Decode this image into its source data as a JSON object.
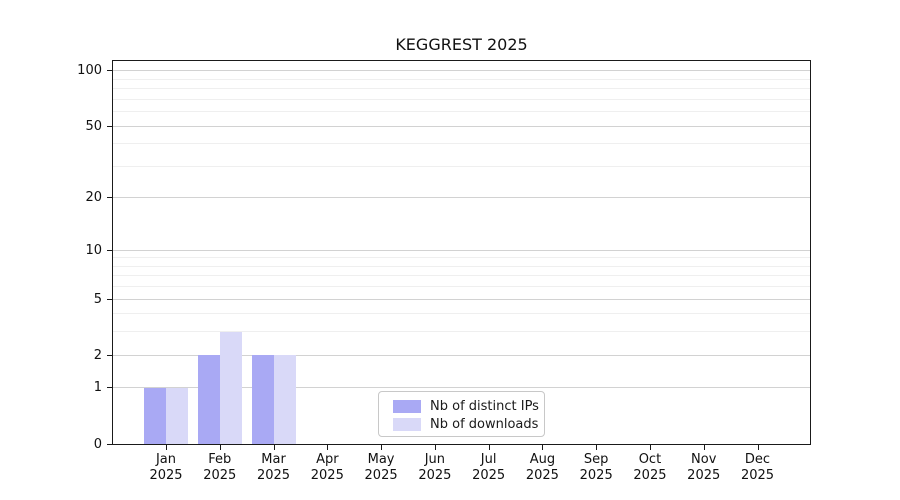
{
  "chart_data": {
    "type": "bar",
    "title": "KEGGREST 2025",
    "categories": [
      "Jan",
      "Feb",
      "Mar",
      "Apr",
      "May",
      "Jun",
      "Jul",
      "Aug",
      "Sep",
      "Oct",
      "Nov",
      "Dec"
    ],
    "x_sub_label": "2025",
    "series": [
      {
        "name": "Nb of distinct IPs",
        "color": "#a9a9f4",
        "values": [
          1,
          2,
          2,
          0,
          0,
          0,
          0,
          0,
          0,
          0,
          0,
          0
        ]
      },
      {
        "name": "Nb of downloads",
        "color": "#d9d9f8",
        "values": [
          1,
          3,
          2,
          0,
          0,
          0,
          0,
          0,
          0,
          0,
          0,
          0
        ]
      }
    ],
    "xlabel": "",
    "ylabel": "",
    "yscale": "log1p",
    "ylim": [
      0,
      113
    ],
    "y_major_ticks": [
      100,
      50,
      20,
      10,
      5,
      2,
      1,
      0
    ],
    "y_minor_gridlines": [
      3,
      4,
      6,
      7,
      8,
      9,
      30,
      40,
      60,
      70,
      80,
      90
    ],
    "grid": true,
    "legend_position": "bottom-center",
    "colors": {
      "major_gridline": "#d2d2d2",
      "minor_gridline": "#efefef",
      "axis": "#1a1a1a",
      "text": "#111111"
    }
  }
}
